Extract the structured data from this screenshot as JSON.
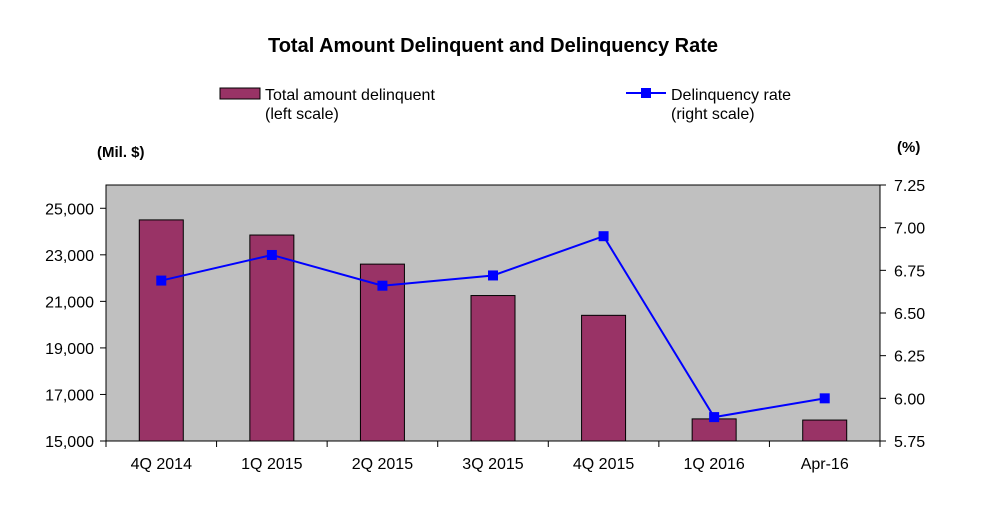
{
  "chart_data": {
    "type": "bar",
    "title": "Total Amount Delinquent and Delinquency Rate",
    "categories": [
      "4Q 2014",
      "1Q 2015",
      "2Q 2015",
      "3Q 2015",
      "4Q 2015",
      "1Q 2016",
      "Apr-16"
    ],
    "series": [
      {
        "name": "Total amount delinquent",
        "name_note": "(left scale)",
        "type": "bar",
        "axis": "left",
        "values": [
          24500,
          23850,
          22600,
          21250,
          20400,
          15950,
          15900
        ]
      },
      {
        "name": "Delinquency rate",
        "name_note": "(right scale)",
        "type": "line",
        "axis": "right",
        "values": [
          6.69,
          6.84,
          6.66,
          6.72,
          6.95,
          5.89,
          6.0
        ]
      }
    ],
    "y_left": {
      "unit_label": "(Mil. $)",
      "ylim": [
        15000,
        26000
      ],
      "ticks": [
        15000,
        17000,
        19000,
        21000,
        23000,
        25000
      ],
      "tick_labels": [
        "15,000",
        "17,000",
        "19,000",
        "21,000",
        "23,000",
        "25,000"
      ]
    },
    "y_right": {
      "unit_label": "(%)",
      "ylim": [
        5.75,
        7.25
      ],
      "ticks": [
        5.75,
        6.0,
        6.25,
        6.5,
        6.75,
        7.0,
        7.25
      ],
      "tick_labels": [
        "5.75",
        "6.00",
        "6.25",
        "6.50",
        "6.75",
        "7.00",
        "7.25"
      ]
    },
    "legend_position": "top",
    "grid": false,
    "colors": {
      "plot_background": "#c0c0c0",
      "bar_fill": "#993366",
      "bar_stroke": "#000000",
      "line": "#0000ff",
      "marker": "#0000ff"
    }
  }
}
